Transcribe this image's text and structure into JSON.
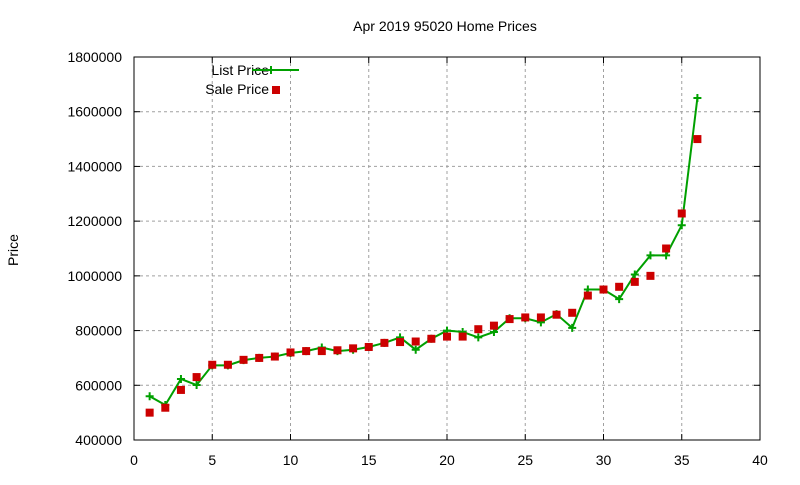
{
  "chart_data": {
    "type": "line",
    "title": "Apr 2019 95020 Home Prices",
    "xlabel": "",
    "ylabel": "Price",
    "xlim": [
      0,
      40
    ],
    "ylim": [
      400000,
      1800000
    ],
    "xticks": [
      0,
      5,
      10,
      15,
      20,
      25,
      30,
      35,
      40
    ],
    "yticks": [
      400000,
      600000,
      800000,
      1000000,
      1200000,
      1400000,
      1600000,
      1800000
    ],
    "grid": true,
    "legend_position": "top-left",
    "x": [
      1,
      2,
      3,
      4,
      5,
      6,
      7,
      8,
      9,
      10,
      11,
      12,
      13,
      14,
      15,
      16,
      17,
      18,
      19,
      20,
      21,
      22,
      23,
      24,
      25,
      26,
      27,
      28,
      29,
      30,
      31,
      32,
      33,
      34,
      35,
      36
    ],
    "series": [
      {
        "name": "List Price",
        "style": "linespoints",
        "color": "#00a000",
        "values": [
          560000,
          528000,
          623000,
          601000,
          673000,
          673000,
          692000,
          700000,
          705000,
          718000,
          725000,
          738000,
          725000,
          730000,
          740000,
          755000,
          775000,
          730000,
          770000,
          800000,
          795000,
          775000,
          795000,
          845000,
          845000,
          830000,
          860000,
          810000,
          950000,
          950000,
          915000,
          1005000,
          1075000,
          1075000,
          1185000,
          1650000
        ]
      },
      {
        "name": "Sale Price",
        "style": "points",
        "color": "#cc0000",
        "values": [
          500000,
          518000,
          583000,
          630000,
          675000,
          675000,
          693000,
          700000,
          705000,
          720000,
          725000,
          725000,
          728000,
          735000,
          740000,
          755000,
          758000,
          760000,
          770000,
          778000,
          778000,
          805000,
          818000,
          842000,
          848000,
          848000,
          858000,
          865000,
          928000,
          950000,
          960000,
          978000,
          1000000,
          1100000,
          1228000,
          1500000
        ]
      }
    ]
  }
}
